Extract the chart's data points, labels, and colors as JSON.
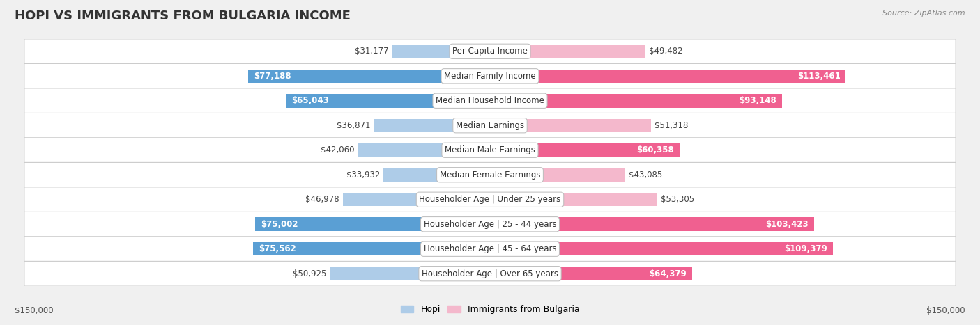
{
  "title": "HOPI VS IMMIGRANTS FROM BULGARIA INCOME",
  "source": "Source: ZipAtlas.com",
  "categories": [
    "Per Capita Income",
    "Median Family Income",
    "Median Household Income",
    "Median Earnings",
    "Median Male Earnings",
    "Median Female Earnings",
    "Householder Age | Under 25 years",
    "Householder Age | 25 - 44 years",
    "Householder Age | 45 - 64 years",
    "Householder Age | Over 65 years"
  ],
  "hopi_values": [
    31177,
    77188,
    65043,
    36871,
    42060,
    33932,
    46978,
    75002,
    75562,
    50925
  ],
  "bulgaria_values": [
    49482,
    113461,
    93148,
    51318,
    60358,
    43085,
    53305,
    103423,
    109379,
    64379
  ],
  "hopi_labels": [
    "$31,177",
    "$77,188",
    "$65,043",
    "$36,871",
    "$42,060",
    "$33,932",
    "$46,978",
    "$75,002",
    "$75,562",
    "$50,925"
  ],
  "bulgaria_labels": [
    "$49,482",
    "$113,461",
    "$93,148",
    "$51,318",
    "$60,358",
    "$43,085",
    "$53,305",
    "$103,423",
    "$109,379",
    "$64,379"
  ],
  "hopi_color_light": "#aecce8",
  "hopi_color_dark": "#5a9fd4",
  "bulgaria_color_light": "#f4b8cc",
  "bulgaria_color_dark": "#f06090",
  "max_value": 150000,
  "x_label_left": "$150,000",
  "x_label_right": "$150,000",
  "legend_hopi": "Hopi",
  "legend_bulgaria": "Immigrants from Bulgaria",
  "bg_color": "#f0f0f0",
  "row_bg_color": "#ffffff",
  "title_color": "#333333",
  "title_fontsize": 13,
  "label_fontsize": 8.5,
  "category_fontsize": 8.5,
  "source_fontsize": 8,
  "inside_label_threshold": 0.4
}
